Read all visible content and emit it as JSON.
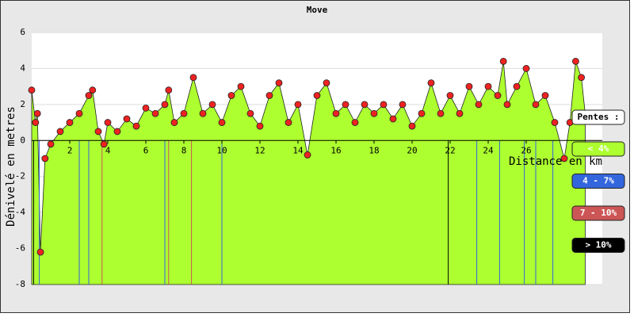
{
  "chart_data": {
    "type": "area",
    "title": "Move",
    "xlabel": "Distance en km",
    "ylabel": "Dénivelé en metres",
    "x": [
      0,
      0.2,
      0.3,
      0.46,
      0.7,
      1.0,
      1.5,
      2.0,
      2.5,
      3.0,
      3.2,
      3.5,
      3.8,
      4.0,
      4.5,
      5.0,
      5.5,
      6.0,
      6.5,
      7.0,
      7.2,
      7.5,
      8.0,
      8.5,
      9.0,
      9.5,
      10.0,
      10.5,
      11.0,
      11.5,
      12.0,
      12.5,
      13.0,
      13.5,
      14.0,
      14.5,
      15.0,
      15.5,
      16.0,
      16.5,
      17.0,
      17.5,
      18.0,
      18.5,
      19.0,
      19.5,
      20.0,
      20.5,
      21.0,
      21.5,
      22.0,
      22.5,
      23.0,
      23.5,
      24.0,
      24.5,
      24.8,
      25.0,
      25.5,
      26.0,
      26.5,
      27.0,
      27.5,
      28.0,
      28.3,
      28.6,
      28.9,
      29.1
    ],
    "values": [
      2.8,
      1.0,
      1.5,
      -6.2,
      -1.0,
      -0.2,
      0.5,
      1.0,
      1.5,
      2.5,
      2.8,
      0.5,
      -0.2,
      1.0,
      0.5,
      1.2,
      0.8,
      1.8,
      1.5,
      2.0,
      2.8,
      1.0,
      1.5,
      3.5,
      1.5,
      2.0,
      1.0,
      2.5,
      3.0,
      1.5,
      0.8,
      2.5,
      3.2,
      1.0,
      2.0,
      -0.8,
      2.5,
      3.2,
      1.5,
      2.0,
      1.0,
      2.0,
      1.5,
      2.0,
      1.2,
      2.0,
      0.8,
      1.5,
      3.2,
      1.5,
      2.5,
      1.5,
      3.0,
      2.0,
      3.0,
      2.5,
      4.4,
      2.0,
      3.0,
      4.0,
      2.0,
      2.5,
      1.0,
      -1.0,
      1.0,
      4.4,
      3.5,
      1.5
    ],
    "xlim": [
      0,
      30
    ],
    "xticks": [
      2,
      4,
      6,
      8,
      10,
      12,
      14,
      16,
      18,
      20,
      22,
      24,
      26
    ],
    "ylim": [
      -8,
      6
    ],
    "yticks": [
      -8,
      -6,
      -4,
      -2,
      0,
      2,
      4,
      6
    ],
    "fill_color": "#adff2f",
    "point_color": "#ee2222",
    "grid": true,
    "legend_title": "Pentes :",
    "legend": [
      {
        "label": "< 4%",
        "color": "#adff2f"
      },
      {
        "label": "4 - 7%",
        "color": "#3366dd"
      },
      {
        "label": "7 - 10%",
        "color": "#cc5555"
      },
      {
        "label": "> 10%",
        "color": "#000000"
      }
    ],
    "markers": [
      {
        "x": 0.1,
        "class": 3
      },
      {
        "x": 0.4,
        "class": 1
      },
      {
        "x": 2.5,
        "class": 1
      },
      {
        "x": 3.0,
        "class": 1
      },
      {
        "x": 3.7,
        "class": 2
      },
      {
        "x": 7.0,
        "class": 1
      },
      {
        "x": 7.2,
        "class": 2
      },
      {
        "x": 8.4,
        "class": 2
      },
      {
        "x": 10.0,
        "class": 1
      },
      {
        "x": 21.9,
        "class": 3
      },
      {
        "x": 23.4,
        "class": 1
      },
      {
        "x": 24.6,
        "class": 1
      },
      {
        "x": 25.9,
        "class": 1
      },
      {
        "x": 26.5,
        "class": 1
      },
      {
        "x": 27.4,
        "class": 1
      }
    ]
  }
}
